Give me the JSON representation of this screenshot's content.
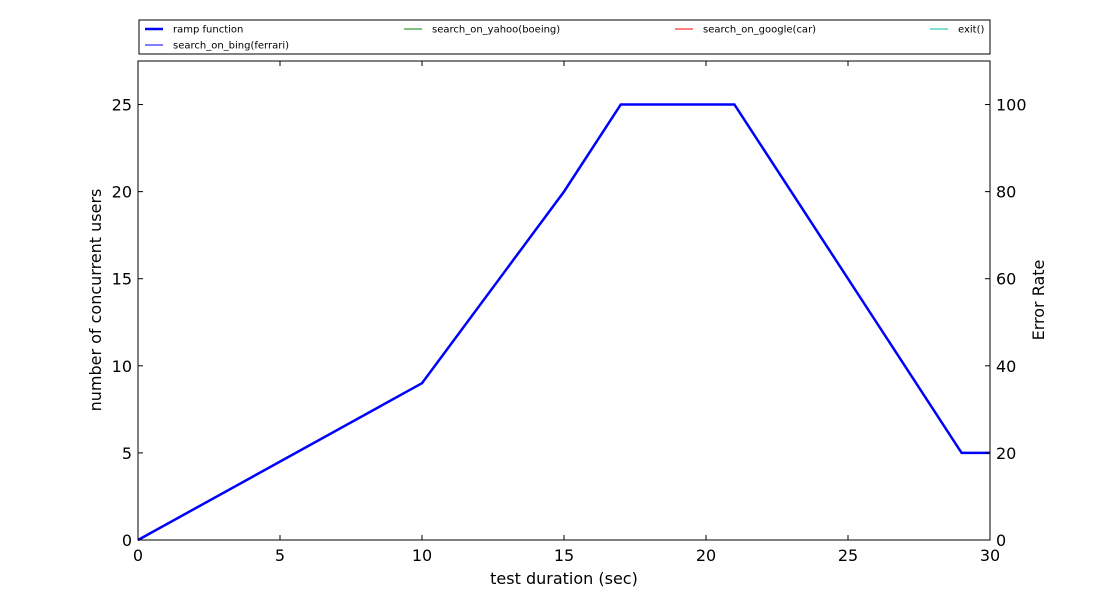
{
  "chart_data": {
    "type": "line",
    "title": "",
    "xlabel": "test duration (sec)",
    "ylabel": "number of concurrent users",
    "y2label": "Error Rate",
    "xlim": [
      0,
      30
    ],
    "ylim": [
      0,
      27.5
    ],
    "y2lim": [
      0,
      110
    ],
    "xticks": [
      0,
      5,
      10,
      15,
      20,
      25,
      30
    ],
    "yticks": [
      0,
      5,
      10,
      15,
      20,
      25
    ],
    "y2ticks": [
      0,
      20,
      40,
      60,
      80,
      100
    ],
    "grid": false,
    "legend_position": "top, above plot",
    "series": [
      {
        "name": "ramp function",
        "axis": "left",
        "color": "#0000ff",
        "style": "thick",
        "x": [
          0,
          10,
          15,
          17,
          21,
          29,
          30
        ],
        "y": [
          0,
          9,
          20,
          25,
          25,
          5,
          5
        ]
      },
      {
        "name": "search_on_bing(ferrari)",
        "axis": "right",
        "color": "#0000ff",
        "style": "thin",
        "x": [],
        "y": []
      },
      {
        "name": "search_on_yahoo(boeing)",
        "axis": "right",
        "color": "#008000",
        "style": "thin",
        "x": [],
        "y": []
      },
      {
        "name": "search_on_google(car)",
        "axis": "right",
        "color": "#ff0000",
        "style": "thin",
        "x": [],
        "y": []
      },
      {
        "name": "exit()",
        "axis": "right",
        "color": "#00bfa0",
        "style": "thin",
        "x": [],
        "y": []
      }
    ]
  }
}
